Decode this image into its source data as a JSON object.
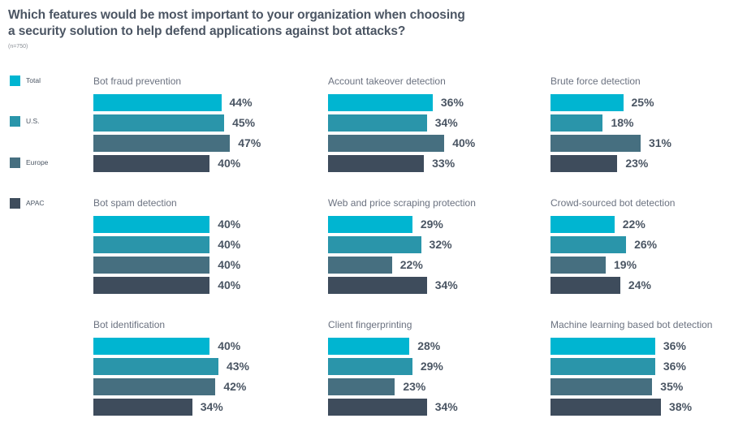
{
  "header": {
    "title_line1": "Which features would be most important to your organization when choosing",
    "title_line2": "a security solution to help defend applications against bot attacks?",
    "sample_note": "(n=750)"
  },
  "colors": {
    "Total": "#00b5d1",
    "U.S.": "#2a95aa",
    "Europe": "#466f80",
    "APAC": "#3e4c5c",
    "label_text": "#4a5563"
  },
  "legend": [
    {
      "label": "Total",
      "color": "#00b5d1"
    },
    {
      "label": "U.S.",
      "color": "#2a95aa"
    },
    {
      "label": "Europe",
      "color": "#466f80"
    },
    {
      "label": "APAC",
      "color": "#3e4c5c"
    }
  ],
  "chart_data": {
    "type": "bar",
    "orientation": "horizontal",
    "title": "Which features would be most important to your organization when choosing a security solution to help defend applications against bot attacks?",
    "subtitle": "(n=750)",
    "series_names": [
      "Total",
      "U.S.",
      "Europe",
      "APAC"
    ],
    "value_format": "percent",
    "xlim": [
      0,
      50
    ],
    "grid": false,
    "legend_position": "left",
    "panels": [
      {
        "title": "Bot fraud prevention",
        "values": [
          44,
          45,
          47,
          40
        ]
      },
      {
        "title": "Account takeover detection",
        "values": [
          36,
          34,
          40,
          33
        ]
      },
      {
        "title": "Brute force detection",
        "values": [
          25,
          18,
          31,
          23
        ]
      },
      {
        "title": "Bot spam detection",
        "values": [
          40,
          40,
          40,
          40
        ]
      },
      {
        "title": "Web and price scraping protection",
        "values": [
          29,
          32,
          22,
          34
        ]
      },
      {
        "title": "Crowd-sourced bot detection",
        "values": [
          22,
          26,
          19,
          24
        ]
      },
      {
        "title": "Bot identification",
        "values": [
          40,
          43,
          42,
          34
        ]
      },
      {
        "title": "Client fingerprinting",
        "values": [
          28,
          29,
          23,
          34
        ]
      },
      {
        "title": "Machine learning based bot detection",
        "values": [
          36,
          36,
          35,
          38
        ]
      }
    ]
  }
}
